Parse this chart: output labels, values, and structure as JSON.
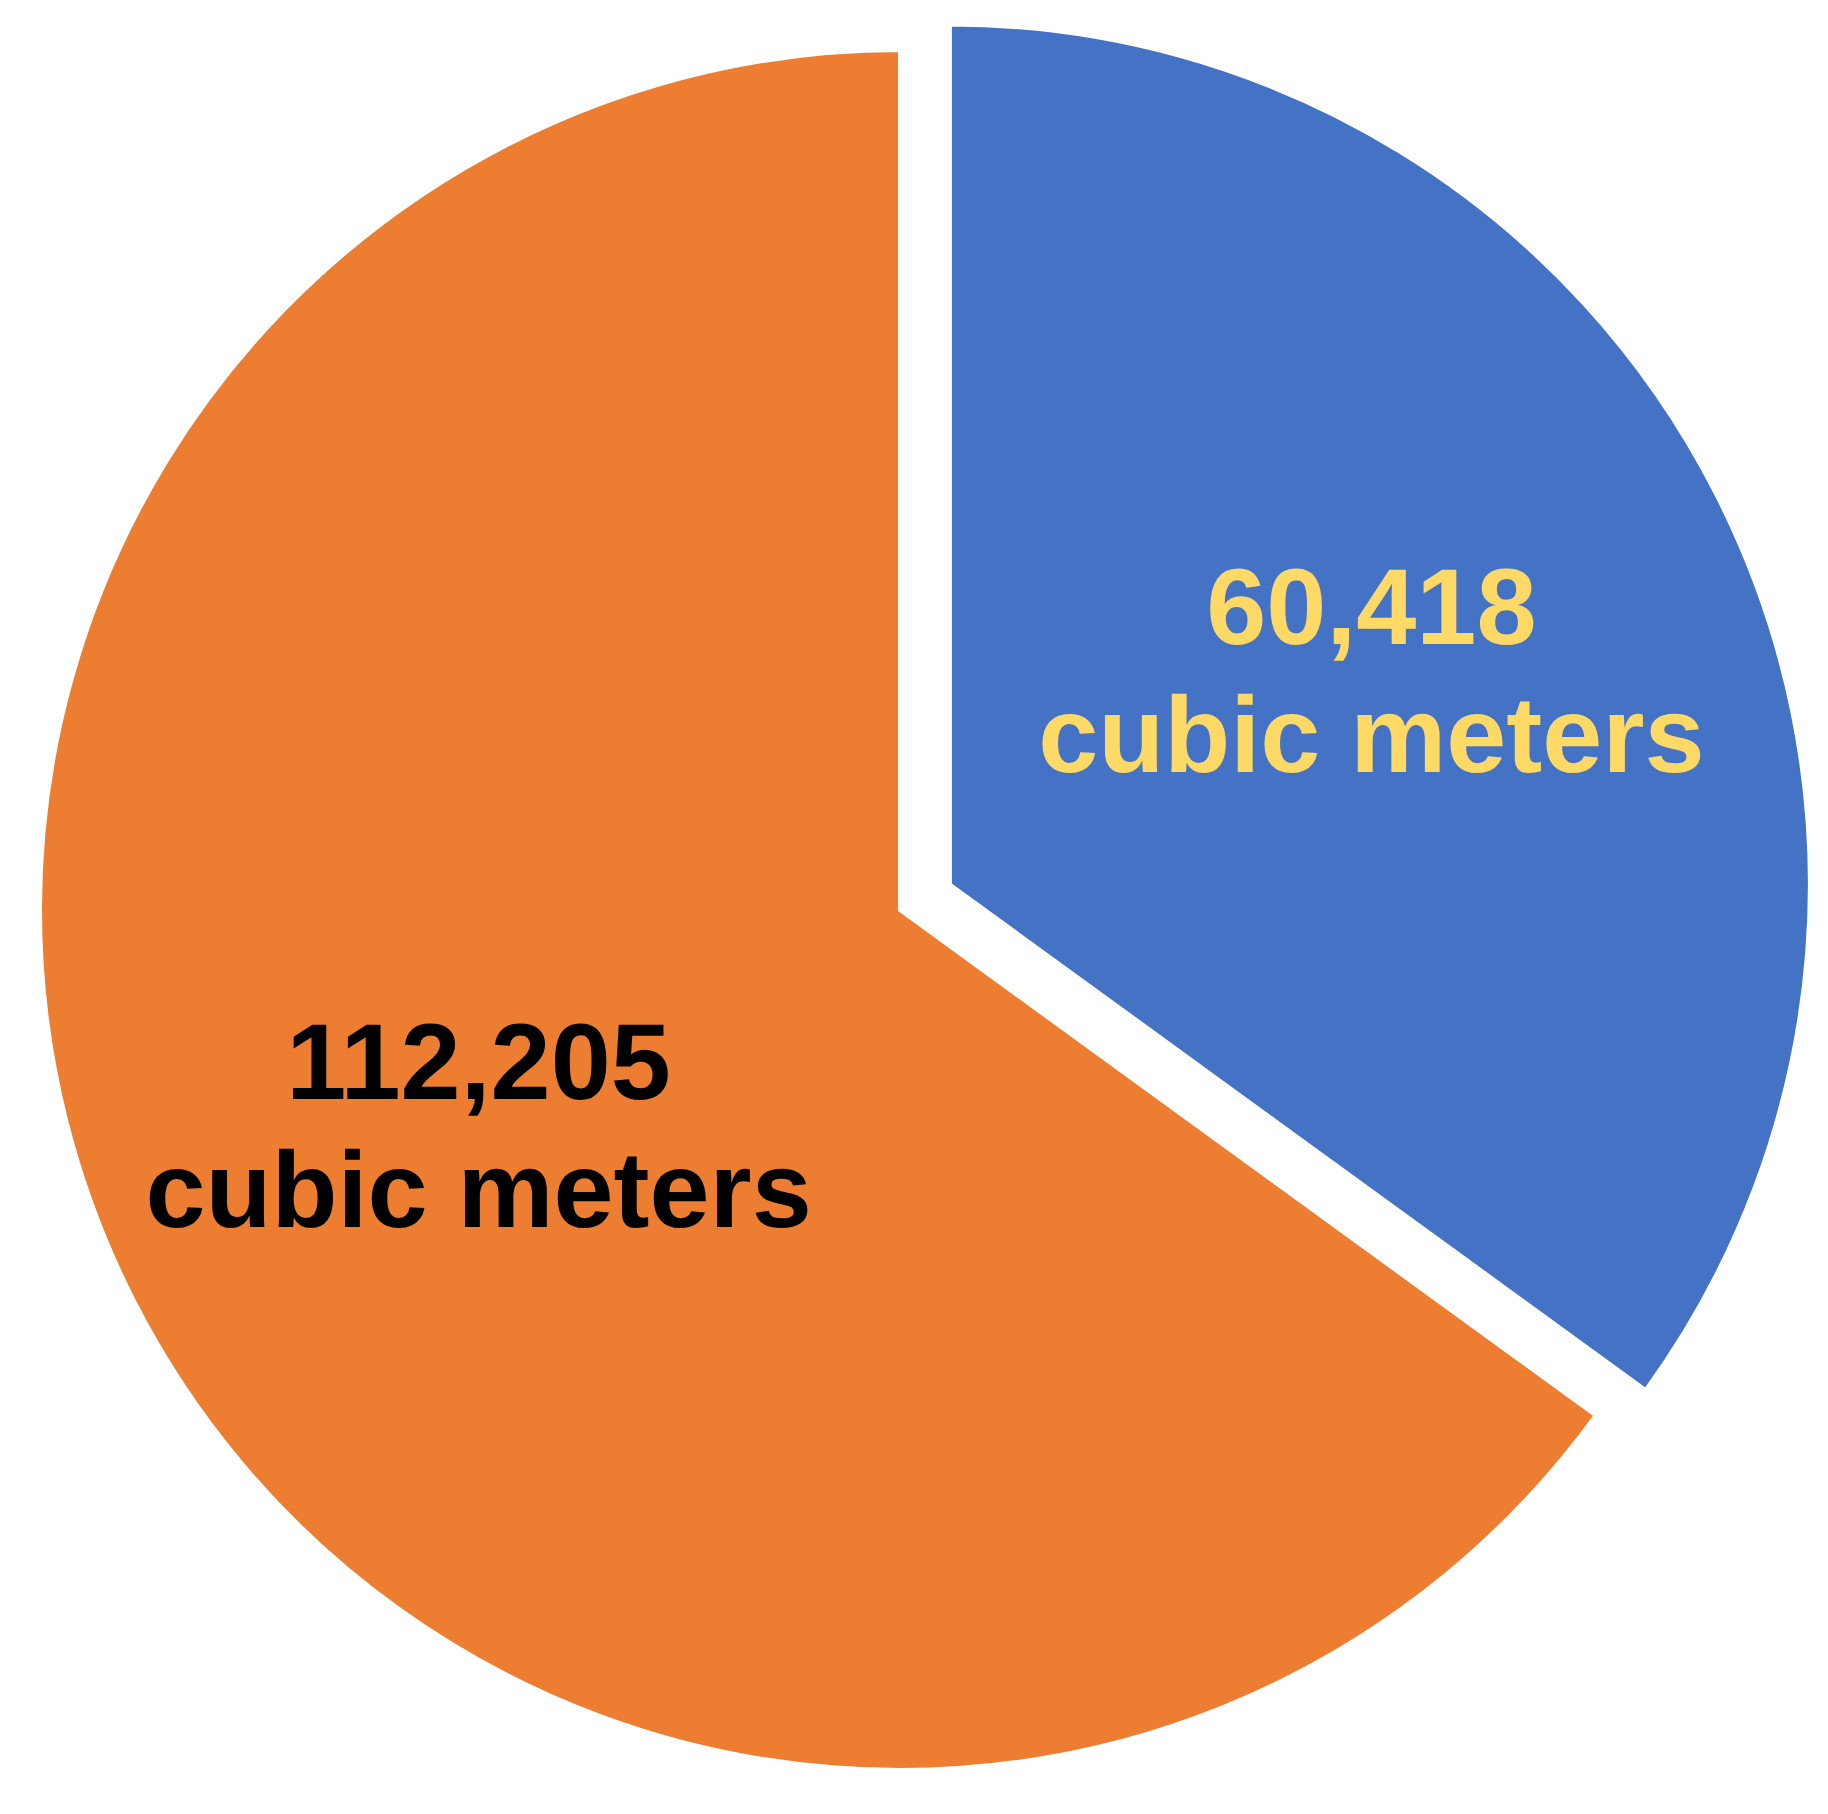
{
  "chart_data": {
    "type": "pie",
    "categories": [
      null,
      null
    ],
    "values": [
      60418,
      112205
    ],
    "colors": [
      "#4472c4",
      "#ed7d31"
    ],
    "value_labels": [
      "60,418\ncubic meters",
      "112,205\ncubic meters"
    ]
  }
}
